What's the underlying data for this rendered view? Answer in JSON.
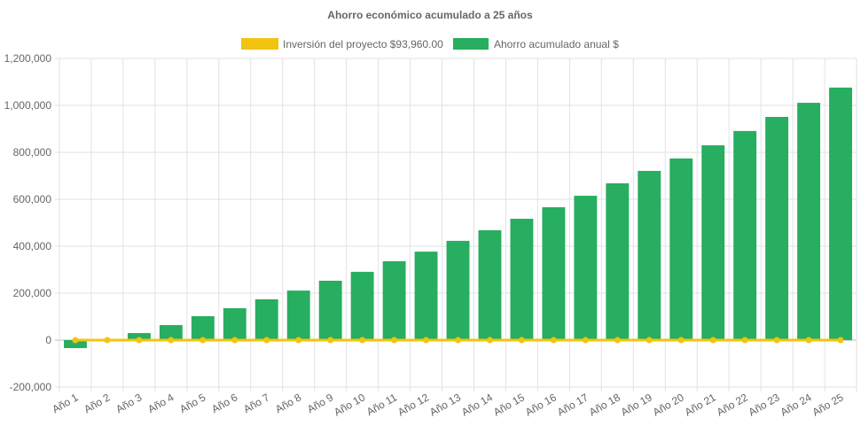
{
  "chart_data": {
    "type": "bar",
    "title": "Ahorro económico acumulado a 25 años",
    "categories": [
      "Año 1",
      "Año 2",
      "Año 3",
      "Año 4",
      "Año 5",
      "Año 6",
      "Año 7",
      "Año 8",
      "Año 9",
      "Año 10",
      "Año 11",
      "Año 12",
      "Año 13",
      "Año 14",
      "Año 15",
      "Año 16",
      "Año 17",
      "Año 18",
      "Año 19",
      "Año 20",
      "Año 21",
      "Año 22",
      "Año 23",
      "Año 24",
      "Año 25"
    ],
    "series": [
      {
        "name": "Inversión del proyecto $93,960.00",
        "type": "line",
        "color": "#f1c40f",
        "values": [
          0,
          0,
          0,
          0,
          0,
          0,
          0,
          0,
          0,
          0,
          0,
          0,
          0,
          0,
          0,
          0,
          0,
          0,
          0,
          0,
          0,
          0,
          0,
          0,
          0
        ]
      },
      {
        "name": "Ahorro acumulado anual $",
        "type": "bar",
        "color": "#27ae60",
        "values": [
          -34000,
          0,
          30000,
          64000,
          102000,
          136000,
          174000,
          211000,
          253000,
          291000,
          336000,
          377000,
          423000,
          468000,
          517000,
          566000,
          615000,
          668000,
          721000,
          774000,
          830000,
          891000,
          951000,
          1011000,
          1076000
        ]
      }
    ],
    "yticks": [
      "1,200,000",
      "1,000,000",
      "800,000",
      "600,000",
      "400,000",
      "200,000",
      "0",
      "-200,000"
    ],
    "ylim": [
      -200000,
      1200000
    ],
    "grid": true,
    "legend": "top"
  }
}
